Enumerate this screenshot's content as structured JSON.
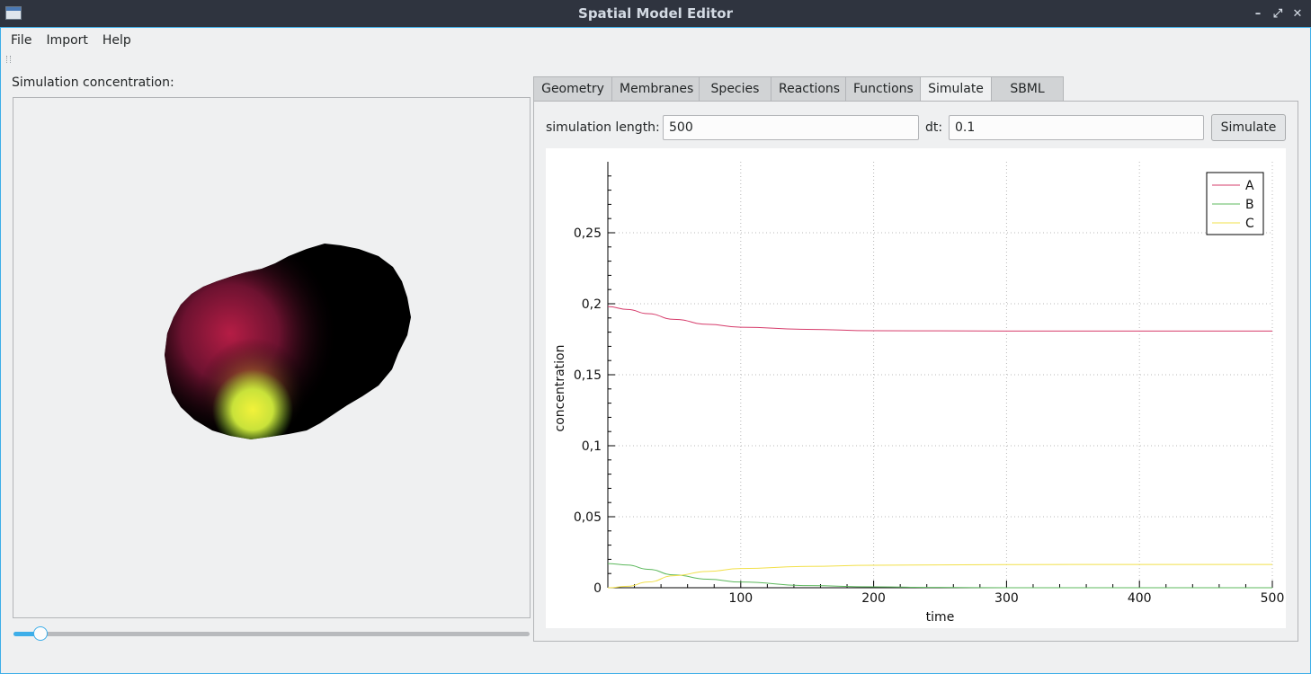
{
  "window": {
    "title": "Spatial Model Editor",
    "buttons": [
      "–",
      "⤢",
      "✕"
    ]
  },
  "menu": [
    "File",
    "Import",
    "Help"
  ],
  "left": {
    "label": "Simulation concentration:",
    "slider_position": 0.04
  },
  "tabs": [
    "Geometry",
    "Membranes",
    "Species",
    "Reactions",
    "Functions",
    "Simulate",
    "SBML"
  ],
  "active_tab": "Simulate",
  "controls": {
    "length_label": "simulation length:",
    "length_value": "500",
    "dt_label": "dt:",
    "dt_value": "0.1",
    "simulate_button": "Simulate"
  },
  "colors": {
    "accent": "#3daee9",
    "series_A": "#d63c6b",
    "series_B": "#5cb85c",
    "series_C": "#f2e04a"
  },
  "chart_data": {
    "type": "line",
    "xlabel": "time",
    "ylabel": "concentration",
    "xlim": [
      0,
      500
    ],
    "ylim": [
      0,
      0.3
    ],
    "xticks": [
      {
        "v": 100,
        "label": "100"
      },
      {
        "v": 200,
        "label": "200"
      },
      {
        "v": 300,
        "label": "300"
      },
      {
        "v": 400,
        "label": "400"
      },
      {
        "v": 500,
        "label": "500"
      }
    ],
    "yticks": [
      {
        "v": 0,
        "label": "0"
      },
      {
        "v": 0.05,
        "label": "0,05"
      },
      {
        "v": 0.1,
        "label": "0,1"
      },
      {
        "v": 0.15,
        "label": "0,15"
      },
      {
        "v": 0.2,
        "label": "0,2"
      },
      {
        "v": 0.25,
        "label": "0,25"
      }
    ],
    "grid": true,
    "legend_position": "top-right",
    "series": [
      {
        "name": "A",
        "color": "#d63c6b",
        "x": [
          0,
          15,
          30,
          50,
          75,
          100,
          150,
          200,
          300,
          400,
          500
        ],
        "y": [
          0.198,
          0.196,
          0.193,
          0.189,
          0.1855,
          0.1835,
          0.182,
          0.181,
          0.1808,
          0.1808,
          0.1808
        ]
      },
      {
        "name": "B",
        "color": "#5cb85c",
        "x": [
          0,
          15,
          30,
          50,
          75,
          100,
          150,
          200,
          250,
          300,
          400,
          500
        ],
        "y": [
          0.017,
          0.016,
          0.013,
          0.009,
          0.006,
          0.004,
          0.0015,
          0.0006,
          0.0002,
          0.0,
          0.0,
          0.0
        ]
      },
      {
        "name": "C",
        "color": "#f2e04a",
        "x": [
          0,
          15,
          30,
          50,
          75,
          100,
          150,
          200,
          300,
          400,
          500
        ],
        "y": [
          0.0,
          0.001,
          0.004,
          0.0085,
          0.0115,
          0.0135,
          0.015,
          0.0158,
          0.0163,
          0.0164,
          0.0164
        ]
      }
    ]
  }
}
